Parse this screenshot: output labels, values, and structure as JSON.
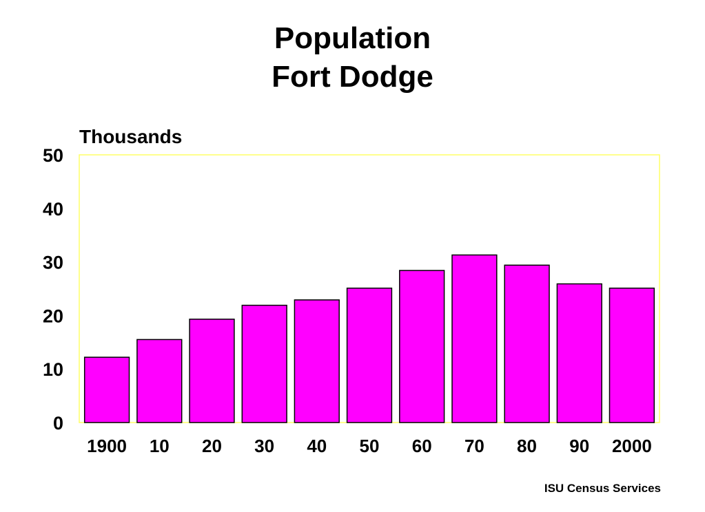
{
  "chart_data": {
    "type": "bar",
    "title": [
      "Population",
      "Fort Dodge"
    ],
    "ylabel": "Thousands",
    "xlabel": "",
    "categories": [
      "1900",
      "10",
      "20",
      "30",
      "40",
      "50",
      "60",
      "70",
      "80",
      "90",
      "2000"
    ],
    "values": [
      12.2,
      15.5,
      19.3,
      21.9,
      22.9,
      25.1,
      28.4,
      31.3,
      29.4,
      25.9,
      25.1
    ],
    "ylim": [
      0,
      50
    ],
    "yticks": [
      "0",
      "10",
      "20",
      "30",
      "40",
      "50"
    ],
    "grid": false,
    "legend": "none",
    "colors": {
      "bar_fill": "#ff00ff",
      "bar_stroke": "#000000",
      "plot_border": "#ffff66"
    }
  },
  "footer": {
    "credit": "ISU Census Services"
  }
}
